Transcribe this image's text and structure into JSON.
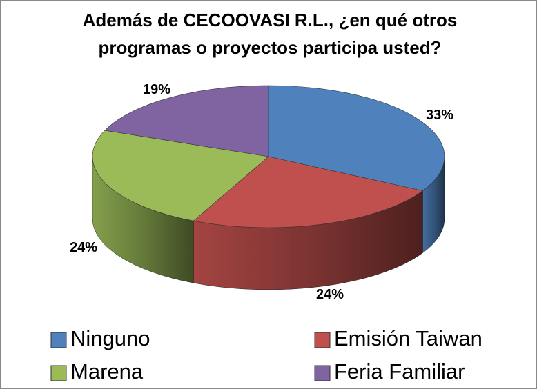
{
  "chart_data": {
    "type": "pie",
    "title": "Además de CECOOVASI R.L., ¿en qué otros programas o proyectos participa usted?",
    "categories": [
      "Ninguno",
      "Emisión Taiwan",
      "Marena",
      "Feria Familiar"
    ],
    "values": [
      33,
      24,
      24,
      19
    ],
    "value_labels": [
      "33%",
      "24%",
      "24%",
      "19%"
    ],
    "colors": [
      "#4f81bd",
      "#c0504d",
      "#9bbb59",
      "#8064a2"
    ]
  }
}
